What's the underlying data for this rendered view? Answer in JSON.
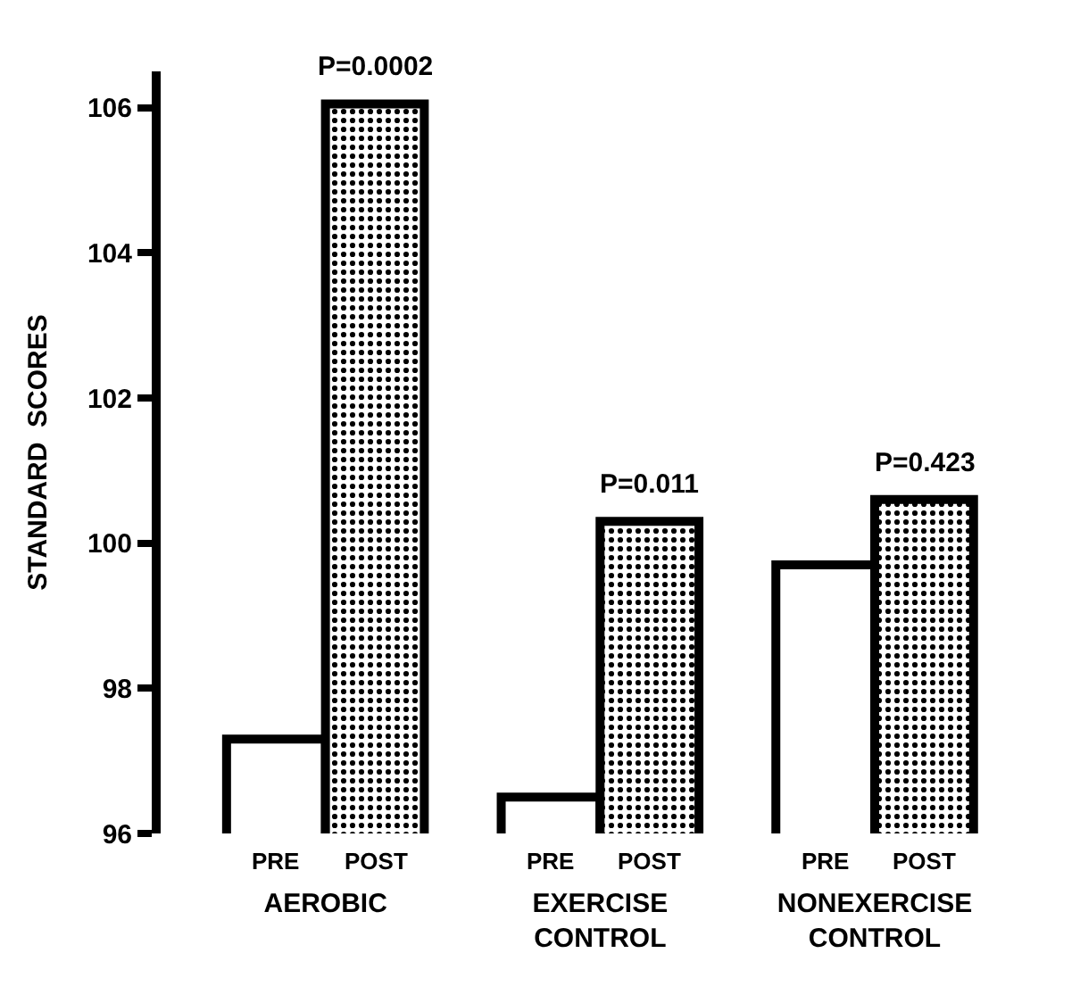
{
  "chart_data": {
    "type": "bar",
    "ylabel": "STANDARD  SCORES",
    "categories": [
      "AEROBIC",
      "EXERCISE\nCONTROL",
      "NONEXERCISE\nCONTROL"
    ],
    "series": [
      {
        "name": "PRE",
        "color": "#ffffff",
        "values": [
          97.3,
          96.5,
          99.7
        ]
      },
      {
        "name": "POST",
        "color": "#000000",
        "values": [
          106.05,
          100.3,
          100.6
        ]
      }
    ],
    "ylim": [
      96,
      106.5
    ],
    "yticks": [
      96,
      98,
      100,
      102,
      104,
      106
    ],
    "grid": false,
    "legend": false,
    "annotations": [
      {
        "text": "P=0.0002",
        "x": "AEROBIC",
        "y": 106.05
      },
      {
        "text": "P=0.011",
        "x": "EXERCISE\nCONTROL",
        "y": 100.3
      },
      {
        "text": "P=0.423",
        "x": "NONEXERCISE\nCONTROL",
        "y": 100.6
      }
    ]
  }
}
